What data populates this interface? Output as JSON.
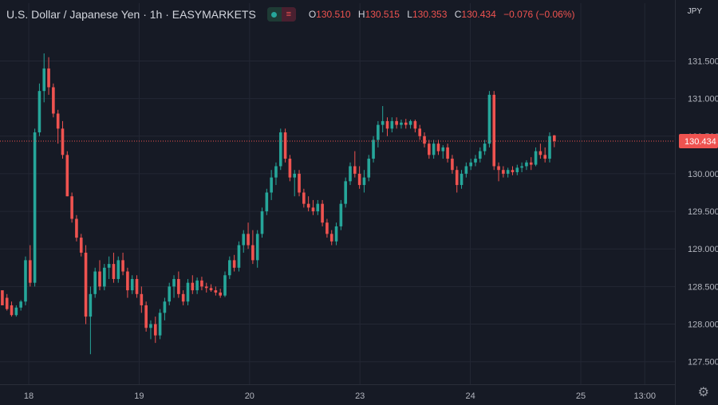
{
  "header": {
    "title": "U.S. Dollar / Japanese Yen · 1h · EASYMARKETS",
    "open_label": "O",
    "open": "130.510",
    "high_label": "H",
    "high": "130.515",
    "low_label": "L",
    "low": "130.353",
    "close_label": "C",
    "close": "130.434",
    "change": "−0.076 (−0.06%)",
    "toggle_icons": [
      "visibility-dot-icon",
      "equals-icon"
    ]
  },
  "currency_label": "JPY",
  "price_tag": "130.434",
  "colors": {
    "background": "#161a25",
    "up": "#26a69a",
    "down": "#ef5350",
    "grid": "#232734",
    "text": "#d1d4dc"
  },
  "chart_data": {
    "type": "candlestick",
    "y_ticks": [
      "131.500",
      "131.000",
      "130.500",
      "130.000",
      "129.500",
      "129.000",
      "128.500",
      "128.000",
      "127.500"
    ],
    "y_tick_values": [
      131.5,
      131.0,
      130.5,
      130.0,
      129.5,
      129.0,
      128.5,
      128.0,
      127.5
    ],
    "ylim": [
      127.2,
      131.95
    ],
    "x_ticks": [
      "18",
      "19",
      "20",
      "23",
      "24",
      "25",
      "13:00"
    ],
    "x_tick_index": [
      5.7,
      29.5,
      53.3,
      77.1,
      100.9,
      124.7,
      138.5
    ],
    "x_index_range": [
      -0.5,
      145
    ],
    "last_price": 130.434,
    "candles": [
      [
        128.45,
        128.45,
        128.25,
        128.25
      ],
      [
        128.35,
        128.4,
        128.18,
        128.2
      ],
      [
        128.25,
        128.3,
        128.1,
        128.12
      ],
      [
        128.12,
        128.25,
        128.1,
        128.22
      ],
      [
        128.22,
        128.32,
        128.18,
        128.3
      ],
      [
        128.3,
        128.9,
        128.25,
        128.85
      ],
      [
        128.85,
        129.05,
        128.5,
        128.55
      ],
      [
        128.55,
        130.6,
        128.5,
        130.55
      ],
      [
        130.55,
        131.2,
        130.5,
        131.1
      ],
      [
        131.1,
        131.6,
        130.95,
        131.4
      ],
      [
        131.4,
        131.55,
        131.05,
        131.15
      ],
      [
        131.15,
        131.2,
        130.75,
        130.8
      ],
      [
        130.8,
        130.85,
        130.4,
        130.6
      ],
      [
        130.6,
        130.7,
        130.2,
        130.25
      ],
      [
        130.25,
        130.3,
        129.7,
        129.7
      ],
      [
        129.7,
        129.75,
        129.35,
        129.4
      ],
      [
        129.4,
        129.45,
        129.1,
        129.15
      ],
      [
        129.15,
        129.2,
        128.9,
        128.95
      ],
      [
        128.95,
        129.05,
        128.0,
        128.1
      ],
      [
        128.1,
        128.5,
        127.6,
        128.4
      ],
      [
        128.4,
        128.75,
        128.35,
        128.7
      ],
      [
        128.7,
        128.85,
        128.45,
        128.5
      ],
      [
        128.5,
        128.8,
        128.45,
        128.75
      ],
      [
        128.75,
        128.9,
        128.6,
        128.8
      ],
      [
        128.8,
        128.95,
        128.55,
        128.6
      ],
      [
        128.6,
        128.9,
        128.55,
        128.85
      ],
      [
        128.85,
        128.95,
        128.65,
        128.7
      ],
      [
        128.7,
        128.75,
        128.35,
        128.45
      ],
      [
        128.45,
        128.65,
        128.4,
        128.6
      ],
      [
        128.6,
        128.65,
        128.35,
        128.4
      ],
      [
        128.4,
        128.5,
        128.15,
        128.25
      ],
      [
        128.25,
        128.3,
        127.9,
        127.95
      ],
      [
        127.95,
        128.05,
        127.8,
        128.0
      ],
      [
        128.0,
        128.1,
        127.75,
        127.85
      ],
      [
        127.85,
        128.2,
        127.8,
        128.15
      ],
      [
        128.15,
        128.35,
        128.05,
        128.3
      ],
      [
        128.3,
        128.55,
        128.25,
        128.5
      ],
      [
        128.5,
        128.65,
        128.35,
        128.6
      ],
      [
        128.6,
        128.7,
        128.35,
        128.4
      ],
      [
        128.4,
        128.45,
        128.25,
        128.3
      ],
      [
        128.3,
        128.6,
        128.25,
        128.55
      ],
      [
        128.55,
        128.65,
        128.4,
        128.45
      ],
      [
        128.45,
        128.62,
        128.4,
        128.58
      ],
      [
        128.58,
        128.63,
        128.45,
        128.5
      ],
      [
        128.5,
        128.55,
        128.42,
        128.48
      ],
      [
        128.48,
        128.53,
        128.43,
        128.45
      ],
      [
        128.45,
        128.5,
        128.38,
        128.42
      ],
      [
        128.42,
        128.47,
        128.35,
        128.38
      ],
      [
        128.38,
        128.7,
        128.36,
        128.65
      ],
      [
        128.65,
        128.9,
        128.6,
        128.85
      ],
      [
        128.85,
        128.92,
        128.7,
        128.75
      ],
      [
        128.75,
        129.1,
        128.7,
        129.05
      ],
      [
        129.05,
        129.25,
        128.95,
        129.2
      ],
      [
        129.2,
        129.35,
        129.0,
        129.05
      ],
      [
        129.05,
        129.25,
        128.8,
        128.85
      ],
      [
        128.85,
        129.25,
        128.75,
        129.2
      ],
      [
        129.2,
        129.55,
        129.15,
        129.5
      ],
      [
        129.5,
        129.8,
        129.45,
        129.75
      ],
      [
        129.75,
        130.05,
        129.65,
        129.95
      ],
      [
        129.95,
        130.15,
        129.85,
        130.1
      ],
      [
        130.1,
        130.6,
        130.05,
        130.55
      ],
      [
        130.55,
        130.6,
        130.15,
        130.2
      ],
      [
        130.2,
        130.25,
        129.9,
        129.95
      ],
      [
        129.95,
        130.05,
        129.7,
        130.0
      ],
      [
        130.0,
        130.05,
        129.7,
        129.75
      ],
      [
        129.75,
        129.8,
        129.55,
        129.6
      ],
      [
        129.6,
        129.7,
        129.5,
        129.55
      ],
      [
        129.55,
        129.65,
        129.45,
        129.5
      ],
      [
        129.5,
        129.65,
        129.45,
        129.6
      ],
      [
        129.6,
        129.65,
        129.3,
        129.35
      ],
      [
        129.35,
        129.4,
        129.15,
        129.2
      ],
      [
        129.2,
        129.25,
        129.05,
        129.1
      ],
      [
        129.1,
        129.35,
        129.05,
        129.3
      ],
      [
        129.3,
        129.65,
        129.25,
        129.6
      ],
      [
        129.6,
        129.95,
        129.55,
        129.9
      ],
      [
        129.9,
        130.15,
        129.85,
        130.1
      ],
      [
        130.1,
        130.3,
        129.95,
        130.0
      ],
      [
        130.0,
        130.1,
        129.8,
        129.85
      ],
      [
        129.85,
        130.05,
        129.75,
        129.95
      ],
      [
        129.95,
        130.25,
        129.9,
        130.2
      ],
      [
        130.2,
        130.5,
        130.15,
        130.45
      ],
      [
        130.45,
        130.7,
        130.35,
        130.65
      ],
      [
        130.65,
        130.9,
        130.55,
        130.7
      ],
      [
        130.7,
        130.75,
        130.5,
        130.6
      ],
      [
        130.6,
        130.75,
        130.55,
        130.7
      ],
      [
        130.7,
        130.75,
        130.6,
        130.65
      ],
      [
        130.65,
        130.72,
        130.6,
        130.68
      ],
      [
        130.68,
        130.73,
        130.6,
        130.65
      ],
      [
        130.65,
        130.72,
        130.6,
        130.7
      ],
      [
        130.7,
        130.72,
        130.55,
        130.6
      ],
      [
        130.6,
        130.65,
        130.45,
        130.5
      ],
      [
        130.5,
        130.55,
        130.35,
        130.4
      ],
      [
        130.4,
        130.45,
        130.2,
        130.25
      ],
      [
        130.25,
        130.45,
        130.2,
        130.4
      ],
      [
        130.4,
        130.45,
        130.25,
        130.3
      ],
      [
        130.3,
        130.38,
        130.2,
        130.35
      ],
      [
        130.35,
        130.4,
        130.15,
        130.2
      ],
      [
        130.2,
        130.25,
        130.0,
        130.05
      ],
      [
        130.05,
        130.1,
        129.75,
        129.85
      ],
      [
        129.85,
        130.05,
        129.8,
        130.0
      ],
      [
        130.0,
        130.15,
        129.95,
        130.1
      ],
      [
        130.1,
        130.2,
        130.05,
        130.15
      ],
      [
        130.15,
        130.25,
        130.1,
        130.2
      ],
      [
        130.2,
        130.35,
        130.15,
        130.3
      ],
      [
        130.3,
        130.45,
        130.25,
        130.4
      ],
      [
        130.4,
        131.1,
        130.35,
        131.05
      ],
      [
        131.05,
        131.1,
        130.05,
        130.1
      ],
      [
        130.1,
        130.15,
        129.9,
        130.05
      ],
      [
        130.05,
        130.1,
        129.95,
        130.0
      ],
      [
        130.0,
        130.08,
        129.95,
        130.05
      ],
      [
        130.05,
        130.1,
        129.98,
        130.02
      ],
      [
        130.02,
        130.12,
        129.98,
        130.08
      ],
      [
        130.08,
        130.15,
        130.02,
        130.1
      ],
      [
        130.1,
        130.18,
        130.05,
        130.15
      ],
      [
        130.15,
        130.22,
        130.05,
        130.12
      ],
      [
        130.12,
        130.35,
        130.1,
        130.3
      ],
      [
        130.3,
        130.4,
        130.2,
        130.25
      ],
      [
        130.25,
        130.35,
        130.15,
        130.2
      ],
      [
        130.2,
        130.55,
        130.15,
        130.5
      ],
      [
        130.51,
        130.515,
        130.353,
        130.434
      ]
    ]
  }
}
